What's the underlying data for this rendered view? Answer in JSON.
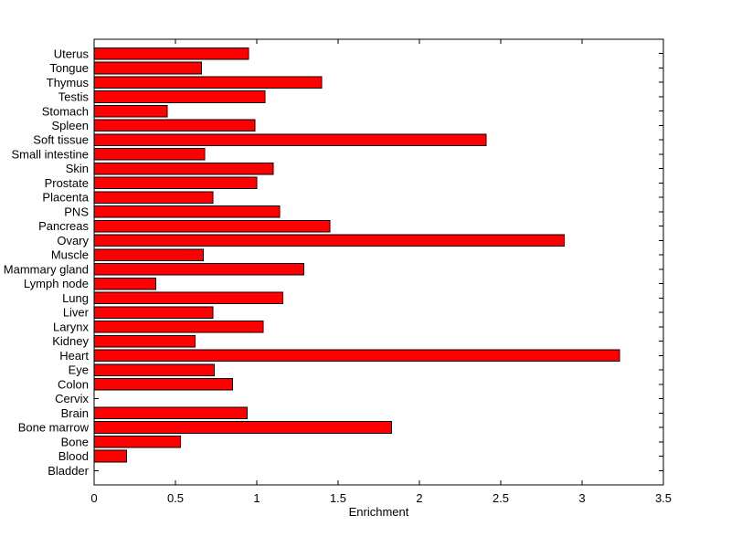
{
  "figure": {
    "background": "#ffffff"
  },
  "chart_data": {
    "type": "bar",
    "orientation": "horizontal",
    "title": "",
    "xlabel": "Enrichment",
    "ylabel": "",
    "xlim": [
      0,
      3.5
    ],
    "x_tick_values": [
      0,
      0.5,
      1,
      1.5,
      2,
      2.5,
      3,
      3.5
    ],
    "x_tick_labels": [
      "0",
      "0.5",
      "1",
      "1.5",
      "2",
      "2.5",
      "3",
      "3.5"
    ],
    "grid": false,
    "legend": null,
    "bar_color": "#ff0000",
    "bar_edge_color": "#000000",
    "axis_color": "#000000",
    "text_color": "#000000",
    "categories": [
      "Uterus",
      "Tongue",
      "Thymus",
      "Testis",
      "Stomach",
      "Spleen",
      "Soft tissue",
      "Small intestine",
      "Skin",
      "Prostate",
      "Placenta",
      "PNS",
      "Pancreas",
      "Ovary",
      "Muscle",
      "Mammary gland",
      "Lymph node",
      "Lung",
      "Liver",
      "Larynx",
      "Kidney",
      "Heart",
      "Eye",
      "Colon",
      "Cervix",
      "Brain",
      "Bone marrow",
      "Bone",
      "Blood",
      "Bladder"
    ],
    "values": [
      0.95,
      0.66,
      1.4,
      1.05,
      0.45,
      0.99,
      2.41,
      0.68,
      1.1,
      1.0,
      0.73,
      1.14,
      1.45,
      2.89,
      0.67,
      1.29,
      0.38,
      1.16,
      0.73,
      1.04,
      0.62,
      3.23,
      0.74,
      0.85,
      0,
      0.94,
      1.83,
      0.53,
      0.2,
      0
    ]
  }
}
